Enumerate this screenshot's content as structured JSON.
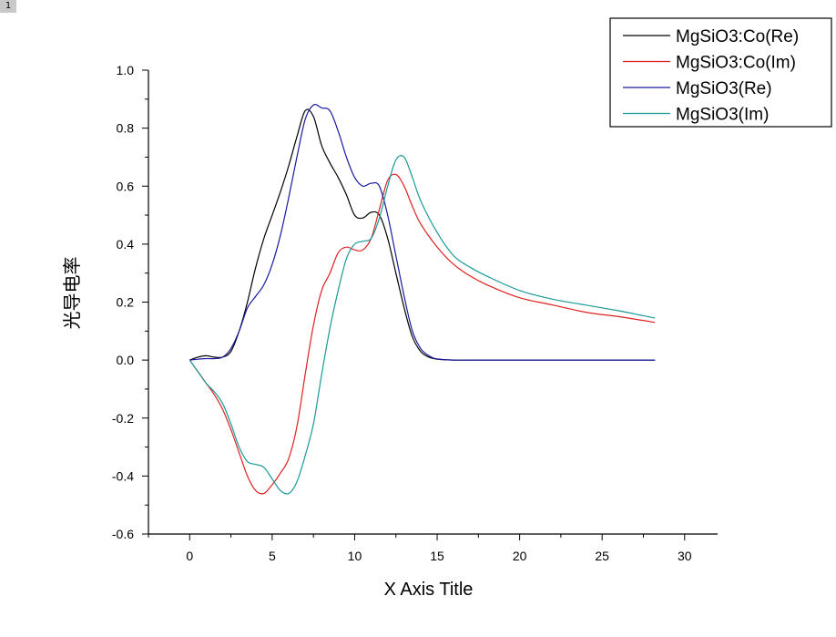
{
  "page_badge": "1",
  "chart_data": {
    "type": "line",
    "title": "",
    "xlabel": "X Axis Title",
    "ylabel": "光导电率",
    "xlim": [
      -2.5,
      32
    ],
    "ylim": [
      -0.6,
      1.0
    ],
    "xticks": [
      0,
      5,
      10,
      15,
      20,
      25,
      30
    ],
    "yticks": [
      -0.6,
      -0.4,
      -0.2,
      0.0,
      0.2,
      0.4,
      0.6,
      0.8,
      1.0
    ],
    "grid": false,
    "legend_position": "top-right",
    "series": [
      {
        "name": "MgSiO3:Co(Re)",
        "color": "#000000",
        "x": [
          0,
          0.5,
          1,
          1.5,
          2,
          2.5,
          3,
          3.5,
          4,
          4.5,
          5,
          5.5,
          6,
          6.5,
          7,
          7.5,
          8,
          8.5,
          9,
          9.5,
          10,
          10.5,
          11,
          11.5,
          12,
          12.5,
          13,
          13.5,
          14,
          14.5,
          15,
          16,
          18,
          20,
          22,
          24,
          26,
          28.2
        ],
        "y": [
          0,
          0.01,
          0.015,
          0.01,
          0.01,
          0.03,
          0.1,
          0.2,
          0.32,
          0.42,
          0.5,
          0.58,
          0.67,
          0.77,
          0.86,
          0.84,
          0.74,
          0.68,
          0.63,
          0.57,
          0.5,
          0.49,
          0.51,
          0.5,
          0.42,
          0.3,
          0.18,
          0.08,
          0.03,
          0.01,
          0.003,
          0,
          0,
          0,
          0,
          0,
          0,
          0
        ]
      },
      {
        "name": "MgSiO3:Co(Im)",
        "color": "#e02020",
        "x": [
          0,
          0.5,
          1,
          1.5,
          2,
          2.5,
          3,
          3.5,
          4,
          4.5,
          5,
          5.5,
          6,
          6.5,
          7,
          7.5,
          8,
          8.5,
          9,
          9.5,
          10,
          10.5,
          11,
          11.5,
          12,
          12.5,
          13,
          13.5,
          14,
          15,
          16,
          17,
          18,
          20,
          22,
          24,
          26,
          28.2
        ],
        "y": [
          0,
          -0.04,
          -0.08,
          -0.12,
          -0.17,
          -0.24,
          -0.32,
          -0.4,
          -0.45,
          -0.46,
          -0.43,
          -0.39,
          -0.34,
          -0.23,
          -0.05,
          0.12,
          0.24,
          0.3,
          0.37,
          0.39,
          0.38,
          0.38,
          0.42,
          0.52,
          0.62,
          0.64,
          0.6,
          0.53,
          0.47,
          0.39,
          0.33,
          0.29,
          0.26,
          0.215,
          0.19,
          0.165,
          0.15,
          0.13
        ]
      },
      {
        "name": "MgSiO3(Re)",
        "color": "#1a1aa0",
        "x": [
          0,
          0.5,
          1,
          1.5,
          2,
          2.5,
          3,
          3.5,
          4,
          4.5,
          5,
          5.5,
          6,
          6.5,
          7,
          7.5,
          8,
          8.5,
          9,
          9.5,
          10,
          10.5,
          11,
          11.5,
          12,
          12.5,
          13,
          13.5,
          14,
          14.5,
          15,
          16,
          18,
          20,
          22,
          24,
          26,
          28.2
        ],
        "y": [
          0,
          0.003,
          0.005,
          0.005,
          0.01,
          0.04,
          0.1,
          0.18,
          0.22,
          0.26,
          0.33,
          0.43,
          0.56,
          0.7,
          0.83,
          0.88,
          0.87,
          0.86,
          0.79,
          0.7,
          0.63,
          0.6,
          0.61,
          0.6,
          0.5,
          0.36,
          0.22,
          0.1,
          0.04,
          0.015,
          0.004,
          0,
          0,
          0,
          0,
          0,
          0,
          0
        ]
      },
      {
        "name": "MgSiO3(Im)",
        "color": "#1a9a9a",
        "x": [
          0,
          0.5,
          1,
          1.5,
          2,
          2.5,
          3,
          3.5,
          4,
          4.5,
          5,
          5.5,
          6,
          6.5,
          7,
          7.5,
          8,
          8.5,
          9,
          9.5,
          10,
          10.5,
          11,
          11.5,
          12,
          12.5,
          13,
          13.5,
          14,
          15,
          16,
          17,
          18,
          20,
          22,
          24,
          26,
          28.2
        ],
        "y": [
          0,
          -0.04,
          -0.08,
          -0.11,
          -0.15,
          -0.22,
          -0.3,
          -0.35,
          -0.36,
          -0.37,
          -0.41,
          -0.45,
          -0.46,
          -0.42,
          -0.33,
          -0.22,
          -0.05,
          0.11,
          0.24,
          0.35,
          0.4,
          0.41,
          0.42,
          0.49,
          0.6,
          0.69,
          0.7,
          0.63,
          0.55,
          0.44,
          0.36,
          0.32,
          0.29,
          0.24,
          0.21,
          0.19,
          0.17,
          0.145
        ]
      }
    ]
  }
}
